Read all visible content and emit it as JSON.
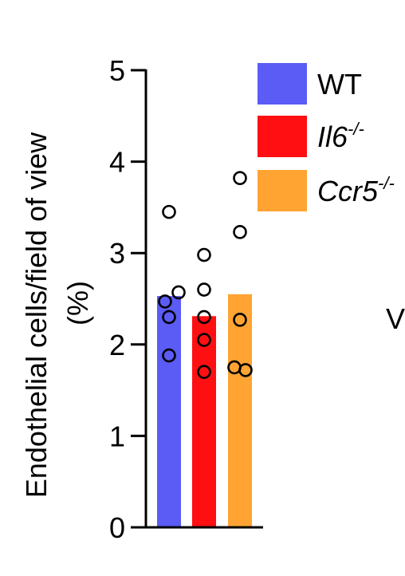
{
  "chart_data": {
    "type": "bar",
    "ylabel_line1": "Endothelial cells/field of view",
    "ylabel_line2": "(%)",
    "ylim": [
      0,
      5
    ],
    "yticks": [
      "0",
      "1",
      "2",
      "3",
      "4",
      "5"
    ],
    "grid": false,
    "legend_position": "top-right",
    "series": [
      {
        "name": "WT",
        "name_base": "WT",
        "name_sup": "",
        "italic": false,
        "color": "#5b5bf5",
        "value": 2.53,
        "points": [
          3.45,
          2.57,
          2.47,
          2.3,
          1.88
        ]
      },
      {
        "name": "Il6-/-",
        "name_base": "Il6",
        "name_sup": "-/-",
        "italic": true,
        "color": "#ff0f12",
        "value": 2.31,
        "points": [
          2.98,
          2.6,
          2.3,
          2.05,
          1.7
        ]
      },
      {
        "name": "Ccr5-/-",
        "name_base": "Ccr5",
        "name_sup": "-/-",
        "italic": true,
        "color": "#ffa433",
        "value": 2.55,
        "points": [
          3.82,
          3.23,
          2.27,
          1.75,
          1.72
        ]
      }
    ],
    "cut_off_text": "V"
  }
}
